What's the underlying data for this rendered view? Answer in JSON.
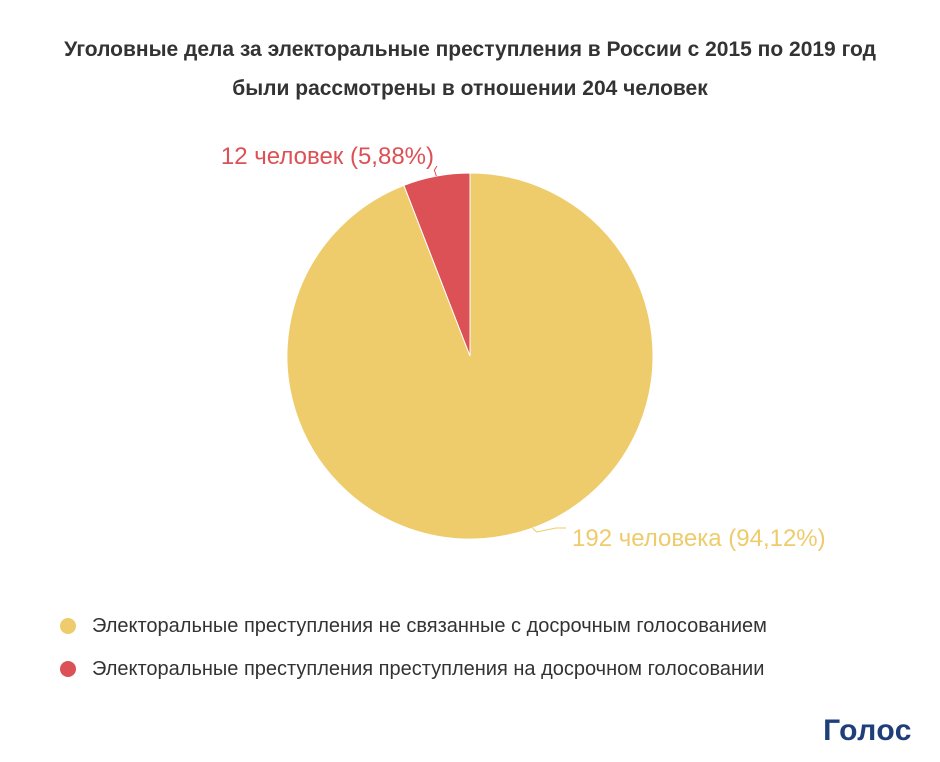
{
  "title": "Уголовные дела за электоральные преступления в России с 2015 по 2019 год были рассмотрены в отношении 204 человек",
  "chart_data": {
    "type": "pie",
    "total": 204,
    "slices": [
      {
        "name": "Электоральные преступления не связанные с досрочным голосованием",
        "value": 192,
        "label": "192 человека (94,12%)",
        "color": "#EECB6B"
      },
      {
        "name": "Электоральные преступления преступления на досрочном голосовании",
        "value": 12,
        "label": "12 человек (5,88%)",
        "color": "#DC5155"
      }
    ],
    "legend_position": "bottom-left"
  },
  "logo": "Голос"
}
